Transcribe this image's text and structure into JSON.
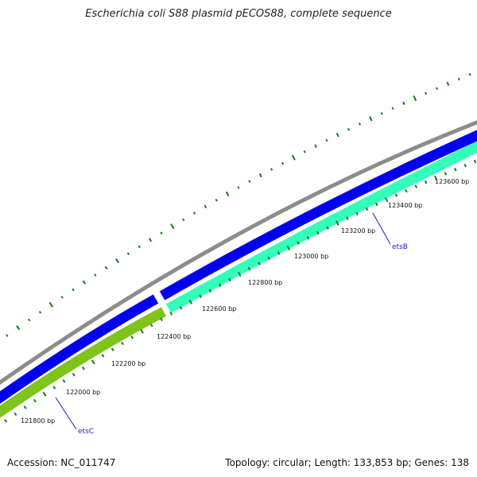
{
  "title": "Escherichia coli S88 plasmid pECOS88, complete sequence",
  "footer": {
    "accession": "Accession: NC_011747",
    "summary": "Topology: circular; Length: 133,853 bp; Genes: 138"
  },
  "scale_ticks": [
    {
      "label": "121800 bp"
    },
    {
      "label": "122000 bp"
    },
    {
      "label": "122200 bp"
    },
    {
      "label": "122400 bp"
    },
    {
      "label": "122600 bp"
    },
    {
      "label": "122800 bp"
    },
    {
      "label": "123000 bp"
    },
    {
      "label": "123200 bp"
    },
    {
      "label": "123400 bp"
    },
    {
      "label": "123600 bp"
    }
  ],
  "genes": [
    {
      "name": "etsC",
      "color": "#1a1ad4"
    },
    {
      "name": "etsB",
      "color": "#1a1ad4"
    }
  ],
  "colors": {
    "backbone": "#8c8c8c",
    "forward_cds": "#0000ee",
    "reverse_cds_a": "#33ffbb",
    "reverse_cds_b": "#7fc41a",
    "gc_tick": "#1a7a1a"
  }
}
